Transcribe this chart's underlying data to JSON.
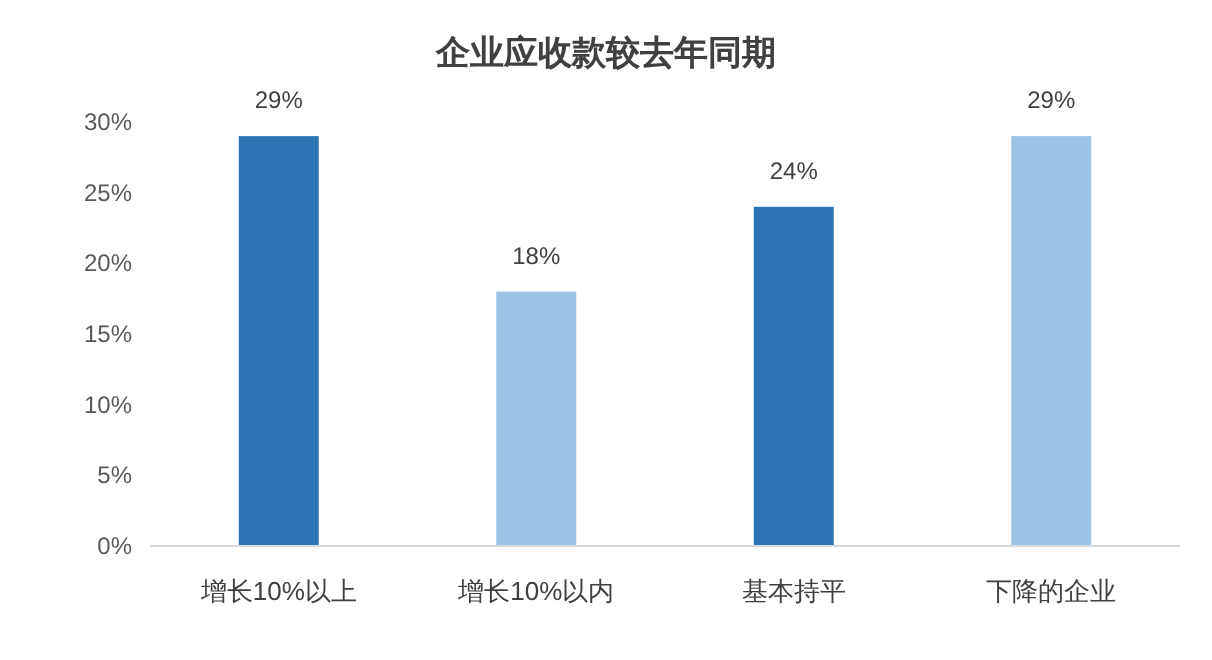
{
  "chart_data": {
    "type": "bar",
    "title": "企业应收款较去年同期",
    "categories": [
      "增长10%以上",
      "增长10%以内",
      "基本持平",
      "下降的企业"
    ],
    "values": [
      29,
      18,
      24,
      29
    ],
    "colors": [
      "#2e75b6",
      "#9dc3e6",
      "#2e75b6",
      "#9dc3e6"
    ],
    "value_labels": [
      "29%",
      "18%",
      "24%",
      "29%"
    ],
    "ylim": [
      0,
      30
    ],
    "yticks": [
      {
        "value": 0,
        "label": "0%"
      },
      {
        "value": 5,
        "label": "5%"
      },
      {
        "value": 10,
        "label": "10%"
      },
      {
        "value": 15,
        "label": "15%"
      },
      {
        "value": 20,
        "label": "20%"
      },
      {
        "value": 25,
        "label": "25%"
      },
      {
        "value": 30,
        "label": "30%"
      }
    ],
    "grid": false
  }
}
